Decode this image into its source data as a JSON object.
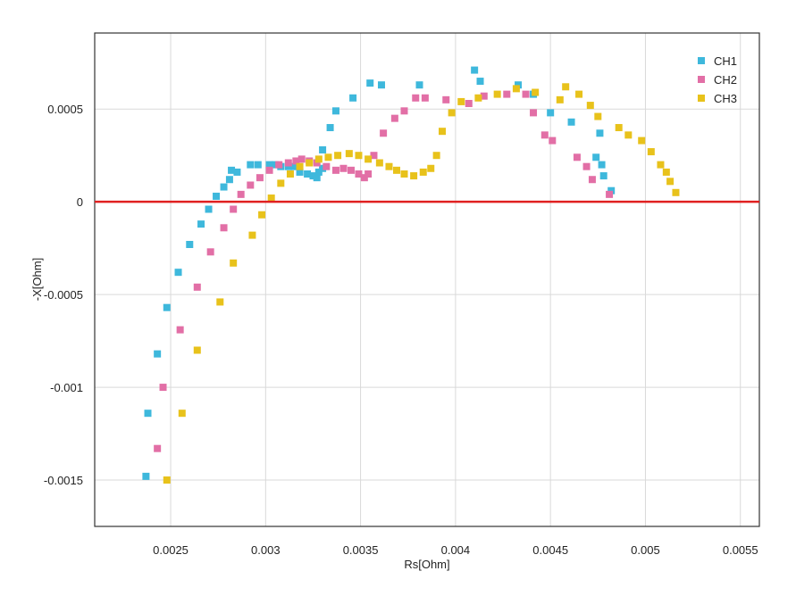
{
  "chart_data": {
    "type": "scatter",
    "title": "",
    "xlabel": "Rs[Ohm]",
    "ylabel": "-X[Ohm]",
    "xlim": [
      0.0021,
      0.0056
    ],
    "ylim": [
      -0.00175,
      0.00091
    ],
    "grid": true,
    "legend_position": "top-right",
    "reference_line": {
      "y": 0,
      "color": "#e02020"
    },
    "x_ticks": [
      0.0025,
      0.003,
      0.0035,
      0.004,
      0.0045,
      0.005,
      0.0055
    ],
    "x_tick_labels": [
      "0.0025",
      "0.003",
      "0.0035",
      "0.004",
      "0.0045",
      "0.005",
      "0.0055"
    ],
    "y_ticks": [
      0.0005,
      0,
      -0.0005,
      -0.001,
      -0.0015
    ],
    "y_tick_labels": [
      "0.0005",
      "0",
      "-0.0005",
      "-0.001",
      "-0.0015"
    ],
    "series": [
      {
        "name": "CH1",
        "color": "#3eb8dc",
        "points": [
          [
            0.00237,
            -0.00148
          ],
          [
            0.00238,
            -0.00114
          ],
          [
            0.00243,
            -0.00082
          ],
          [
            0.00248,
            -0.00057
          ],
          [
            0.00254,
            -0.00038
          ],
          [
            0.0026,
            -0.00023
          ],
          [
            0.00266,
            -0.00012
          ],
          [
            0.0027,
            -4e-05
          ],
          [
            0.00274,
            3e-05
          ],
          [
            0.00278,
            8e-05
          ],
          [
            0.00281,
            0.00012
          ],
          [
            0.00282,
            0.00017
          ],
          [
            0.00285,
            0.00016
          ],
          [
            0.00292,
            0.0002
          ],
          [
            0.00296,
            0.0002
          ],
          [
            0.00302,
            0.0002
          ],
          [
            0.00305,
            0.0002
          ],
          [
            0.00308,
            0.00019
          ],
          [
            0.00312,
            0.00019
          ],
          [
            0.00315,
            0.00019
          ],
          [
            0.00318,
            0.00016
          ],
          [
            0.00322,
            0.00015
          ],
          [
            0.00325,
            0.00014
          ],
          [
            0.00327,
            0.00013
          ],
          [
            0.00328,
            0.00016
          ],
          [
            0.0033,
            0.00018
          ],
          [
            0.0033,
            0.00028
          ],
          [
            0.00334,
            0.0004
          ],
          [
            0.00337,
            0.00049
          ],
          [
            0.00346,
            0.00056
          ],
          [
            0.00355,
            0.00064
          ],
          [
            0.00361,
            0.00063
          ],
          [
            0.00381,
            0.00063
          ],
          [
            0.0041,
            0.00071
          ],
          [
            0.00413,
            0.00065
          ],
          [
            0.00433,
            0.00063
          ],
          [
            0.00441,
            0.00058
          ],
          [
            0.0045,
            0.00048
          ],
          [
            0.00461,
            0.00043
          ],
          [
            0.00476,
            0.00037
          ],
          [
            0.00474,
            0.00024
          ],
          [
            0.00477,
            0.0002
          ],
          [
            0.00478,
            0.00014
          ],
          [
            0.00482,
            6e-05
          ]
        ]
      },
      {
        "name": "CH2",
        "color": "#e26fa6",
        "points": [
          [
            0.00243,
            -0.00133
          ],
          [
            0.00246,
            -0.001
          ],
          [
            0.00255,
            -0.00069
          ],
          [
            0.00264,
            -0.00046
          ],
          [
            0.00271,
            -0.00027
          ],
          [
            0.00278,
            -0.00014
          ],
          [
            0.00283,
            -4e-05
          ],
          [
            0.00287,
            4e-05
          ],
          [
            0.00292,
            9e-05
          ],
          [
            0.00297,
            0.00013
          ],
          [
            0.00302,
            0.00017
          ],
          [
            0.00307,
            0.0002
          ],
          [
            0.00312,
            0.00021
          ],
          [
            0.00316,
            0.00022
          ],
          [
            0.00319,
            0.00023
          ],
          [
            0.00323,
            0.00022
          ],
          [
            0.00327,
            0.00021
          ],
          [
            0.00332,
            0.00019
          ],
          [
            0.00337,
            0.00017
          ],
          [
            0.00341,
            0.00018
          ],
          [
            0.00345,
            0.00017
          ],
          [
            0.00349,
            0.00015
          ],
          [
            0.00352,
            0.00013
          ],
          [
            0.00354,
            0.00015
          ],
          [
            0.00357,
            0.00025
          ],
          [
            0.00362,
            0.00037
          ],
          [
            0.00368,
            0.00045
          ],
          [
            0.00373,
            0.00049
          ],
          [
            0.00379,
            0.00056
          ],
          [
            0.00384,
            0.00056
          ],
          [
            0.00395,
            0.00055
          ],
          [
            0.00407,
            0.00053
          ],
          [
            0.00415,
            0.00057
          ],
          [
            0.00427,
            0.00058
          ],
          [
            0.00437,
            0.00058
          ],
          [
            0.00441,
            0.00048
          ],
          [
            0.00447,
            0.00036
          ],
          [
            0.00451,
            0.00033
          ],
          [
            0.00464,
            0.00024
          ],
          [
            0.00469,
            0.00019
          ],
          [
            0.00472,
            0.00012
          ],
          [
            0.00481,
            4e-05
          ]
        ]
      },
      {
        "name": "CH3",
        "color": "#e8c21b",
        "points": [
          [
            0.00248,
            -0.0015
          ],
          [
            0.00256,
            -0.00114
          ],
          [
            0.00264,
            -0.0008
          ],
          [
            0.00276,
            -0.00054
          ],
          [
            0.00283,
            -0.00033
          ],
          [
            0.00293,
            -0.00018
          ],
          [
            0.00298,
            -7e-05
          ],
          [
            0.00303,
            2e-05
          ],
          [
            0.00308,
            0.0001
          ],
          [
            0.00313,
            0.00015
          ],
          [
            0.00318,
            0.00019
          ],
          [
            0.00323,
            0.00021
          ],
          [
            0.00328,
            0.00023
          ],
          [
            0.00333,
            0.00024
          ],
          [
            0.00338,
            0.00025
          ],
          [
            0.00344,
            0.00026
          ],
          [
            0.00349,
            0.00025
          ],
          [
            0.00354,
            0.00023
          ],
          [
            0.0036,
            0.00021
          ],
          [
            0.00365,
            0.00019
          ],
          [
            0.00369,
            0.00017
          ],
          [
            0.00373,
            0.00015
          ],
          [
            0.00378,
            0.00014
          ],
          [
            0.00383,
            0.00016
          ],
          [
            0.00387,
            0.00018
          ],
          [
            0.0039,
            0.00025
          ],
          [
            0.00393,
            0.00038
          ],
          [
            0.00398,
            0.00048
          ],
          [
            0.00403,
            0.00054
          ],
          [
            0.00412,
            0.00056
          ],
          [
            0.00422,
            0.00058
          ],
          [
            0.00432,
            0.00061
          ],
          [
            0.00442,
            0.00059
          ],
          [
            0.00455,
            0.00055
          ],
          [
            0.00458,
            0.00062
          ],
          [
            0.00465,
            0.00058
          ],
          [
            0.00471,
            0.00052
          ],
          [
            0.00475,
            0.00046
          ],
          [
            0.00486,
            0.0004
          ],
          [
            0.00491,
            0.00036
          ],
          [
            0.00498,
            0.00033
          ],
          [
            0.00503,
            0.00027
          ],
          [
            0.00508,
            0.0002
          ],
          [
            0.00511,
            0.00016
          ],
          [
            0.00513,
            0.00011
          ],
          [
            0.00516,
            5e-05
          ]
        ]
      }
    ]
  }
}
